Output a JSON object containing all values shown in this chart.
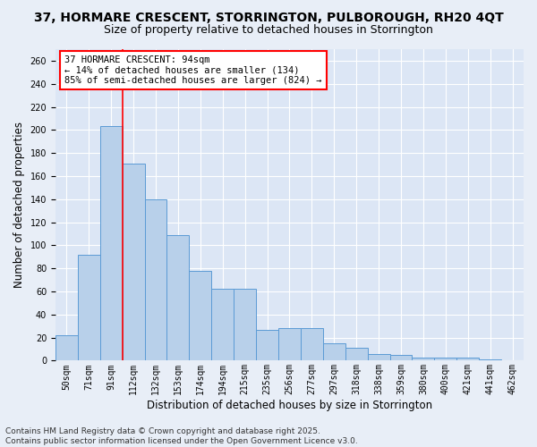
{
  "title_line1": "37, HORMARE CRESCENT, STORRINGTON, PULBOROUGH, RH20 4QT",
  "title_line2": "Size of property relative to detached houses in Storrington",
  "xlabel": "Distribution of detached houses by size in Storrington",
  "ylabel": "Number of detached properties",
  "categories": [
    "50sqm",
    "71sqm",
    "91sqm",
    "112sqm",
    "132sqm",
    "153sqm",
    "174sqm",
    "194sqm",
    "215sqm",
    "235sqm",
    "256sqm",
    "277sqm",
    "297sqm",
    "318sqm",
    "338sqm",
    "359sqm",
    "380sqm",
    "400sqm",
    "421sqm",
    "441sqm",
    "462sqm"
  ],
  "values": [
    22,
    92,
    203,
    171,
    140,
    109,
    78,
    62,
    62,
    27,
    28,
    28,
    15,
    11,
    6,
    5,
    3,
    3,
    3,
    1,
    0
  ],
  "bar_color": "#b8d0ea",
  "bar_edge_color": "#5b9bd5",
  "red_line_x": 2.5,
  "annotation_text": "37 HORMARE CRESCENT: 94sqm\n← 14% of detached houses are smaller (134)\n85% of semi-detached houses are larger (824) →",
  "annotation_box_color": "white",
  "annotation_box_edgecolor": "red",
  "red_line_color": "red",
  "footer_text": "Contains HM Land Registry data © Crown copyright and database right 2025.\nContains public sector information licensed under the Open Government Licence v3.0.",
  "ylim": [
    0,
    270
  ],
  "background_color": "#e8eef7",
  "plot_bg_color": "#dce6f5",
  "grid_color": "white",
  "title_fontsize": 10,
  "subtitle_fontsize": 9,
  "tick_fontsize": 7,
  "label_fontsize": 8.5,
  "footer_fontsize": 6.5,
  "annotation_fontsize": 7.5
}
